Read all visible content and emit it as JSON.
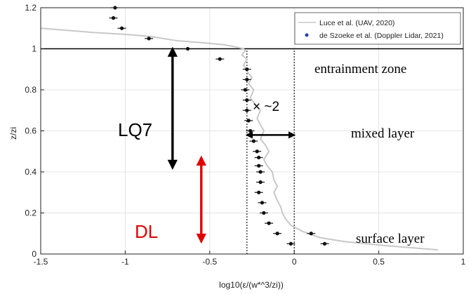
{
  "chart_data": {
    "type": "scatter",
    "title": "",
    "xlabel": "log10(ε/(w*^3/zi))",
    "ylabel": "z/zi",
    "xlim": [
      -1.5,
      1
    ],
    "ylim": [
      0,
      1.2
    ],
    "xticks": [
      "-1.5",
      "-1",
      "-0.5",
      "0",
      "0.5",
      "1"
    ],
    "yticks": [
      "0",
      "0.2",
      "0.4",
      "0.6",
      "0.8",
      "1",
      "1.2"
    ],
    "grid": true,
    "legend_position": "top-right",
    "series": [
      {
        "name": "Luce et al. (UAV, 2020)",
        "kind": "line",
        "color": "#c8c8c8",
        "x": [
          0.85,
          0.55,
          0.3,
          0.15,
          0.05,
          -0.02,
          -0.05,
          -0.07,
          -0.08,
          -0.1,
          -0.12,
          -0.1,
          -0.12,
          -0.13,
          -0.16,
          -0.18,
          -0.15,
          -0.17,
          -0.2,
          -0.18,
          -0.2,
          -0.22,
          -0.2,
          -0.23,
          -0.26,
          -0.24,
          -0.27,
          -0.25,
          -0.28,
          -0.3,
          -0.28,
          -0.31,
          -0.29,
          -0.3,
          -0.35,
          -0.42,
          -0.55,
          -0.7,
          -0.85,
          -1.0,
          -1.2,
          -1.5
        ],
        "y": [
          0.02,
          0.04,
          0.06,
          0.08,
          0.11,
          0.14,
          0.17,
          0.2,
          0.23,
          0.26,
          0.3,
          0.33,
          0.36,
          0.4,
          0.43,
          0.46,
          0.5,
          0.53,
          0.56,
          0.6,
          0.63,
          0.66,
          0.7,
          0.73,
          0.76,
          0.8,
          0.83,
          0.86,
          0.89,
          0.92,
          0.95,
          0.97,
          0.99,
          1.0,
          1.01,
          1.02,
          1.03,
          1.04,
          1.06,
          1.07,
          1.08,
          1.1
        ]
      },
      {
        "name": "de Szoeke et al. (Doppler Lidar, 2021)",
        "kind": "scatter",
        "color": "#111111",
        "legend_color": "#1f3fbf",
        "x": [
          -1.06,
          -1.07,
          -1.02,
          -0.86,
          -0.63,
          -0.44,
          -0.28,
          -0.28,
          -0.29,
          -0.28,
          -0.28,
          -0.27,
          -0.26,
          -0.24,
          -0.22,
          -0.21,
          -0.21,
          -0.2,
          -0.2,
          -0.21,
          -0.19,
          -0.18,
          -0.15,
          -0.1,
          -0.02,
          0.1,
          0.18
        ],
        "y": [
          1.2,
          1.15,
          1.1,
          1.05,
          1.0,
          0.95,
          0.9,
          0.85,
          0.8,
          0.75,
          0.7,
          0.65,
          0.6,
          0.55,
          0.5,
          0.47,
          0.43,
          0.4,
          0.35,
          0.3,
          0.25,
          0.2,
          0.15,
          0.1,
          0.05,
          0.1,
          0.05
        ]
      }
    ],
    "reference_lines": {
      "horizontal_solid_y": 1.0,
      "vertical_dotted_x": [
        -0.28,
        0.0
      ]
    },
    "annotations": {
      "entrainment_zone": "entrainment zone",
      "mixed_layer": "mixed layer",
      "surface_layer": "surface layer",
      "factor": "× ~2",
      "lq7": "LQ7",
      "dl": "DL"
    },
    "arrows": [
      {
        "label": "lq7",
        "color": "#000000",
        "x": -0.72,
        "y_from": 1.0,
        "y_to": 0.42
      },
      {
        "label": "dl",
        "color": "#e00000",
        "x": -0.55,
        "y_from": 0.47,
        "y_to": 0.06
      },
      {
        "label": "factor",
        "color": "#000000",
        "y": 0.58,
        "x_from": -0.28,
        "x_to": 0.0
      }
    ]
  }
}
